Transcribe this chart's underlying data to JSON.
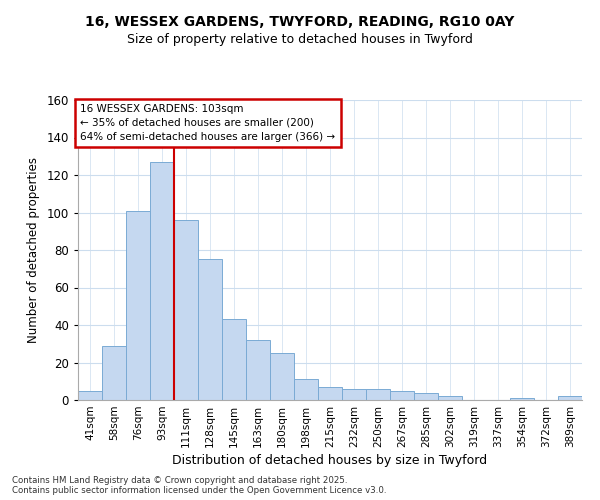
{
  "title_line1": "16, WESSEX GARDENS, TWYFORD, READING, RG10 0AY",
  "title_line2": "Size of property relative to detached houses in Twyford",
  "xlabel": "Distribution of detached houses by size in Twyford",
  "ylabel": "Number of detached properties",
  "categories": [
    "41sqm",
    "58sqm",
    "76sqm",
    "93sqm",
    "111sqm",
    "128sqm",
    "145sqm",
    "163sqm",
    "180sqm",
    "198sqm",
    "215sqm",
    "232sqm",
    "250sqm",
    "267sqm",
    "285sqm",
    "302sqm",
    "319sqm",
    "337sqm",
    "354sqm",
    "372sqm",
    "389sqm"
  ],
  "values": [
    5,
    29,
    101,
    127,
    96,
    75,
    43,
    32,
    25,
    11,
    7,
    6,
    6,
    5,
    4,
    2,
    0,
    0,
    1,
    0,
    2
  ],
  "bar_color": "#c5d8f0",
  "bar_edge_color": "#7aaad4",
  "property_line_x": 3.5,
  "annotation_text_line1": "16 WESSEX GARDENS: 103sqm",
  "annotation_text_line2": "← 35% of detached houses are smaller (200)",
  "annotation_text_line3": "64% of semi-detached houses are larger (366) →",
  "annotation_box_color": "#cc0000",
  "annotation_bg_color": "#ffffff",
  "vline_color": "#cc0000",
  "ylim": [
    0,
    160
  ],
  "yticks": [
    0,
    20,
    40,
    60,
    80,
    100,
    120,
    140,
    160
  ],
  "footer_line1": "Contains HM Land Registry data © Crown copyright and database right 2025.",
  "footer_line2": "Contains public sector information licensed under the Open Government Licence v3.0.",
  "bg_color": "#ffffff",
  "plot_bg_color": "#ffffff",
  "grid_color": "#ccddee"
}
